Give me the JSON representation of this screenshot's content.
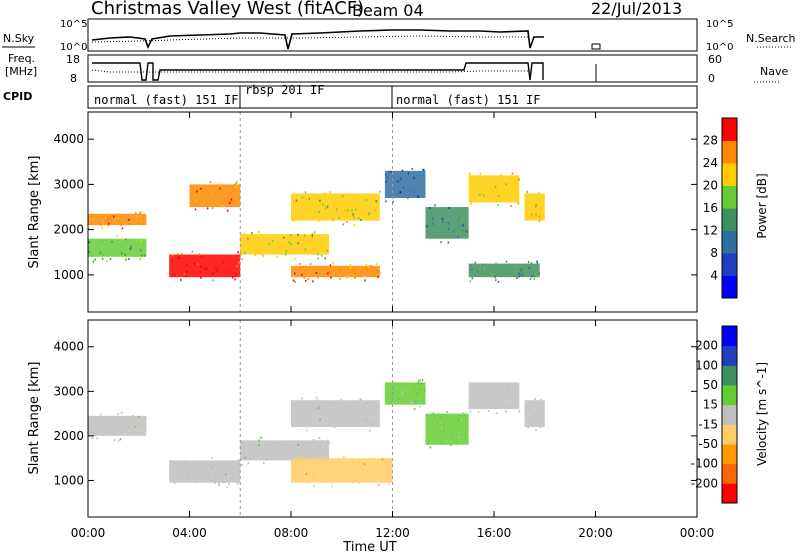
{
  "header": {
    "station": "Christmas Valley West (fitACF)",
    "beam": "Beam 04",
    "date": "22/Jul/2013"
  },
  "labels": {
    "nsky": "N.Sky",
    "nsearch": "N.Search",
    "freq_line1": "Freq.",
    "freq_line2": "[MHz]",
    "nave": "Nave",
    "cpid": "CPID",
    "noise_tick_hi": "10^5",
    "noise_tick_lo": "10^0",
    "noise_tick_hi_r": "10^5",
    "noise_tick_lo_r": "10^0",
    "freq_tick_18": "18",
    "freq_tick_8": "8",
    "nave_tick_60": "60",
    "nave_tick_0": "0"
  },
  "cpid_segments": [
    {
      "label": "normal (fast) 151 IF",
      "start": 0.0,
      "end": 6.0
    },
    {
      "label": "rbsp 201 IF",
      "start": 6.0,
      "end": 12.0
    },
    {
      "label": "normal (fast) 151 IF",
      "start": 12.0,
      "end": 18.0
    }
  ],
  "chart_data": [
    {
      "type": "heatmap",
      "title": "Power",
      "xlabel": "Time UT",
      "ylabel": "Slant Range [km]",
      "xlim": [
        0,
        24
      ],
      "ylim": [
        180,
        4600
      ],
      "xticks": [
        "00:00",
        "04:00",
        "08:00",
        "12:00",
        "16:00",
        "20:00",
        "00:00"
      ],
      "yticks": [
        1000,
        2000,
        3000,
        4000
      ],
      "colorbar": {
        "label": "Power [dB]",
        "ticks": [
          4,
          8,
          12,
          16,
          20,
          24,
          28
        ],
        "range": [
          0,
          32
        ],
        "colors": [
          "#0000ff",
          "#1f3fbf",
          "#2f6f9f",
          "#3f8f5f",
          "#66cc33",
          "#ffcc00",
          "#ff8800",
          "#ff0000"
        ]
      },
      "bands": [
        {
          "x": [
            0.0,
            2.3
          ],
          "y": [
            2100,
            2350
          ],
          "power": 24
        },
        {
          "x": [
            0.0,
            2.3
          ],
          "y": [
            1400,
            1800
          ],
          "power": 16
        },
        {
          "x": [
            3.2,
            6.0
          ],
          "y": [
            950,
            1450
          ],
          "power": 30
        },
        {
          "x": [
            4.0,
            6.0
          ],
          "y": [
            2500,
            3000
          ],
          "power": 26
        },
        {
          "x": [
            6.0,
            9.5
          ],
          "y": [
            1450,
            1900
          ],
          "power": 20
        },
        {
          "x": [
            8.0,
            11.5
          ],
          "y": [
            2200,
            2800
          ],
          "power": 20
        },
        {
          "x": [
            8.0,
            11.5
          ],
          "y": [
            950,
            1200
          ],
          "power": 26
        },
        {
          "x": [
            11.7,
            13.3
          ],
          "y": [
            2700,
            3300
          ],
          "power": 8
        },
        {
          "x": [
            13.3,
            15.0
          ],
          "y": [
            1800,
            2500
          ],
          "power": 12
        },
        {
          "x": [
            15.0,
            17.0
          ],
          "y": [
            2600,
            3200
          ],
          "power": 22
        },
        {
          "x": [
            15.0,
            17.8
          ],
          "y": [
            950,
            1250
          ],
          "power": 14
        },
        {
          "x": [
            17.2,
            18.0
          ],
          "y": [
            2200,
            2800
          ],
          "power": 22
        }
      ]
    },
    {
      "type": "heatmap",
      "title": "Velocity",
      "xlabel": "Time UT",
      "ylabel": "Slant Range [km]",
      "xlim": [
        0,
        24
      ],
      "ylim": [
        180,
        4600
      ],
      "xticks": [
        "00:00",
        "04:00",
        "08:00",
        "12:00",
        "16:00",
        "20:00",
        "00:00"
      ],
      "yticks": [
        1000,
        2000,
        3000,
        4000
      ],
      "colorbar": {
        "label": "Velocity [m s^-1]",
        "ticks": [
          -200,
          -100,
          -50,
          -15,
          15,
          50,
          100,
          200
        ],
        "range": [
          -250,
          250
        ],
        "colors": [
          "#ff0000",
          "#ff6600",
          "#ff9900",
          "#ffcc66",
          "#c0c0c0",
          "#66cc33",
          "#3f8f5f",
          "#1f3fbf",
          "#0000ff"
        ]
      },
      "bands": [
        {
          "x": [
            0.0,
            2.3
          ],
          "y": [
            2000,
            2450
          ],
          "velocity": 0
        },
        {
          "x": [
            3.2,
            6.0
          ],
          "y": [
            950,
            1450
          ],
          "velocity": 0
        },
        {
          "x": [
            6.0,
            9.5
          ],
          "y": [
            1450,
            1900
          ],
          "velocity": 0
        },
        {
          "x": [
            8.0,
            11.5
          ],
          "y": [
            2200,
            2800
          ],
          "velocity": 0
        },
        {
          "x": [
            8.0,
            12.0
          ],
          "y": [
            950,
            1500
          ],
          "velocity": -60
        },
        {
          "x": [
            11.7,
            13.3
          ],
          "y": [
            2700,
            3200
          ],
          "velocity": 40
        },
        {
          "x": [
            13.3,
            15.0
          ],
          "y": [
            1800,
            2500
          ],
          "velocity": 40
        },
        {
          "x": [
            15.0,
            17.0
          ],
          "y": [
            2600,
            3200
          ],
          "velocity": 0
        },
        {
          "x": [
            17.2,
            18.0
          ],
          "y": [
            2200,
            2800
          ],
          "velocity": 0
        }
      ]
    }
  ]
}
